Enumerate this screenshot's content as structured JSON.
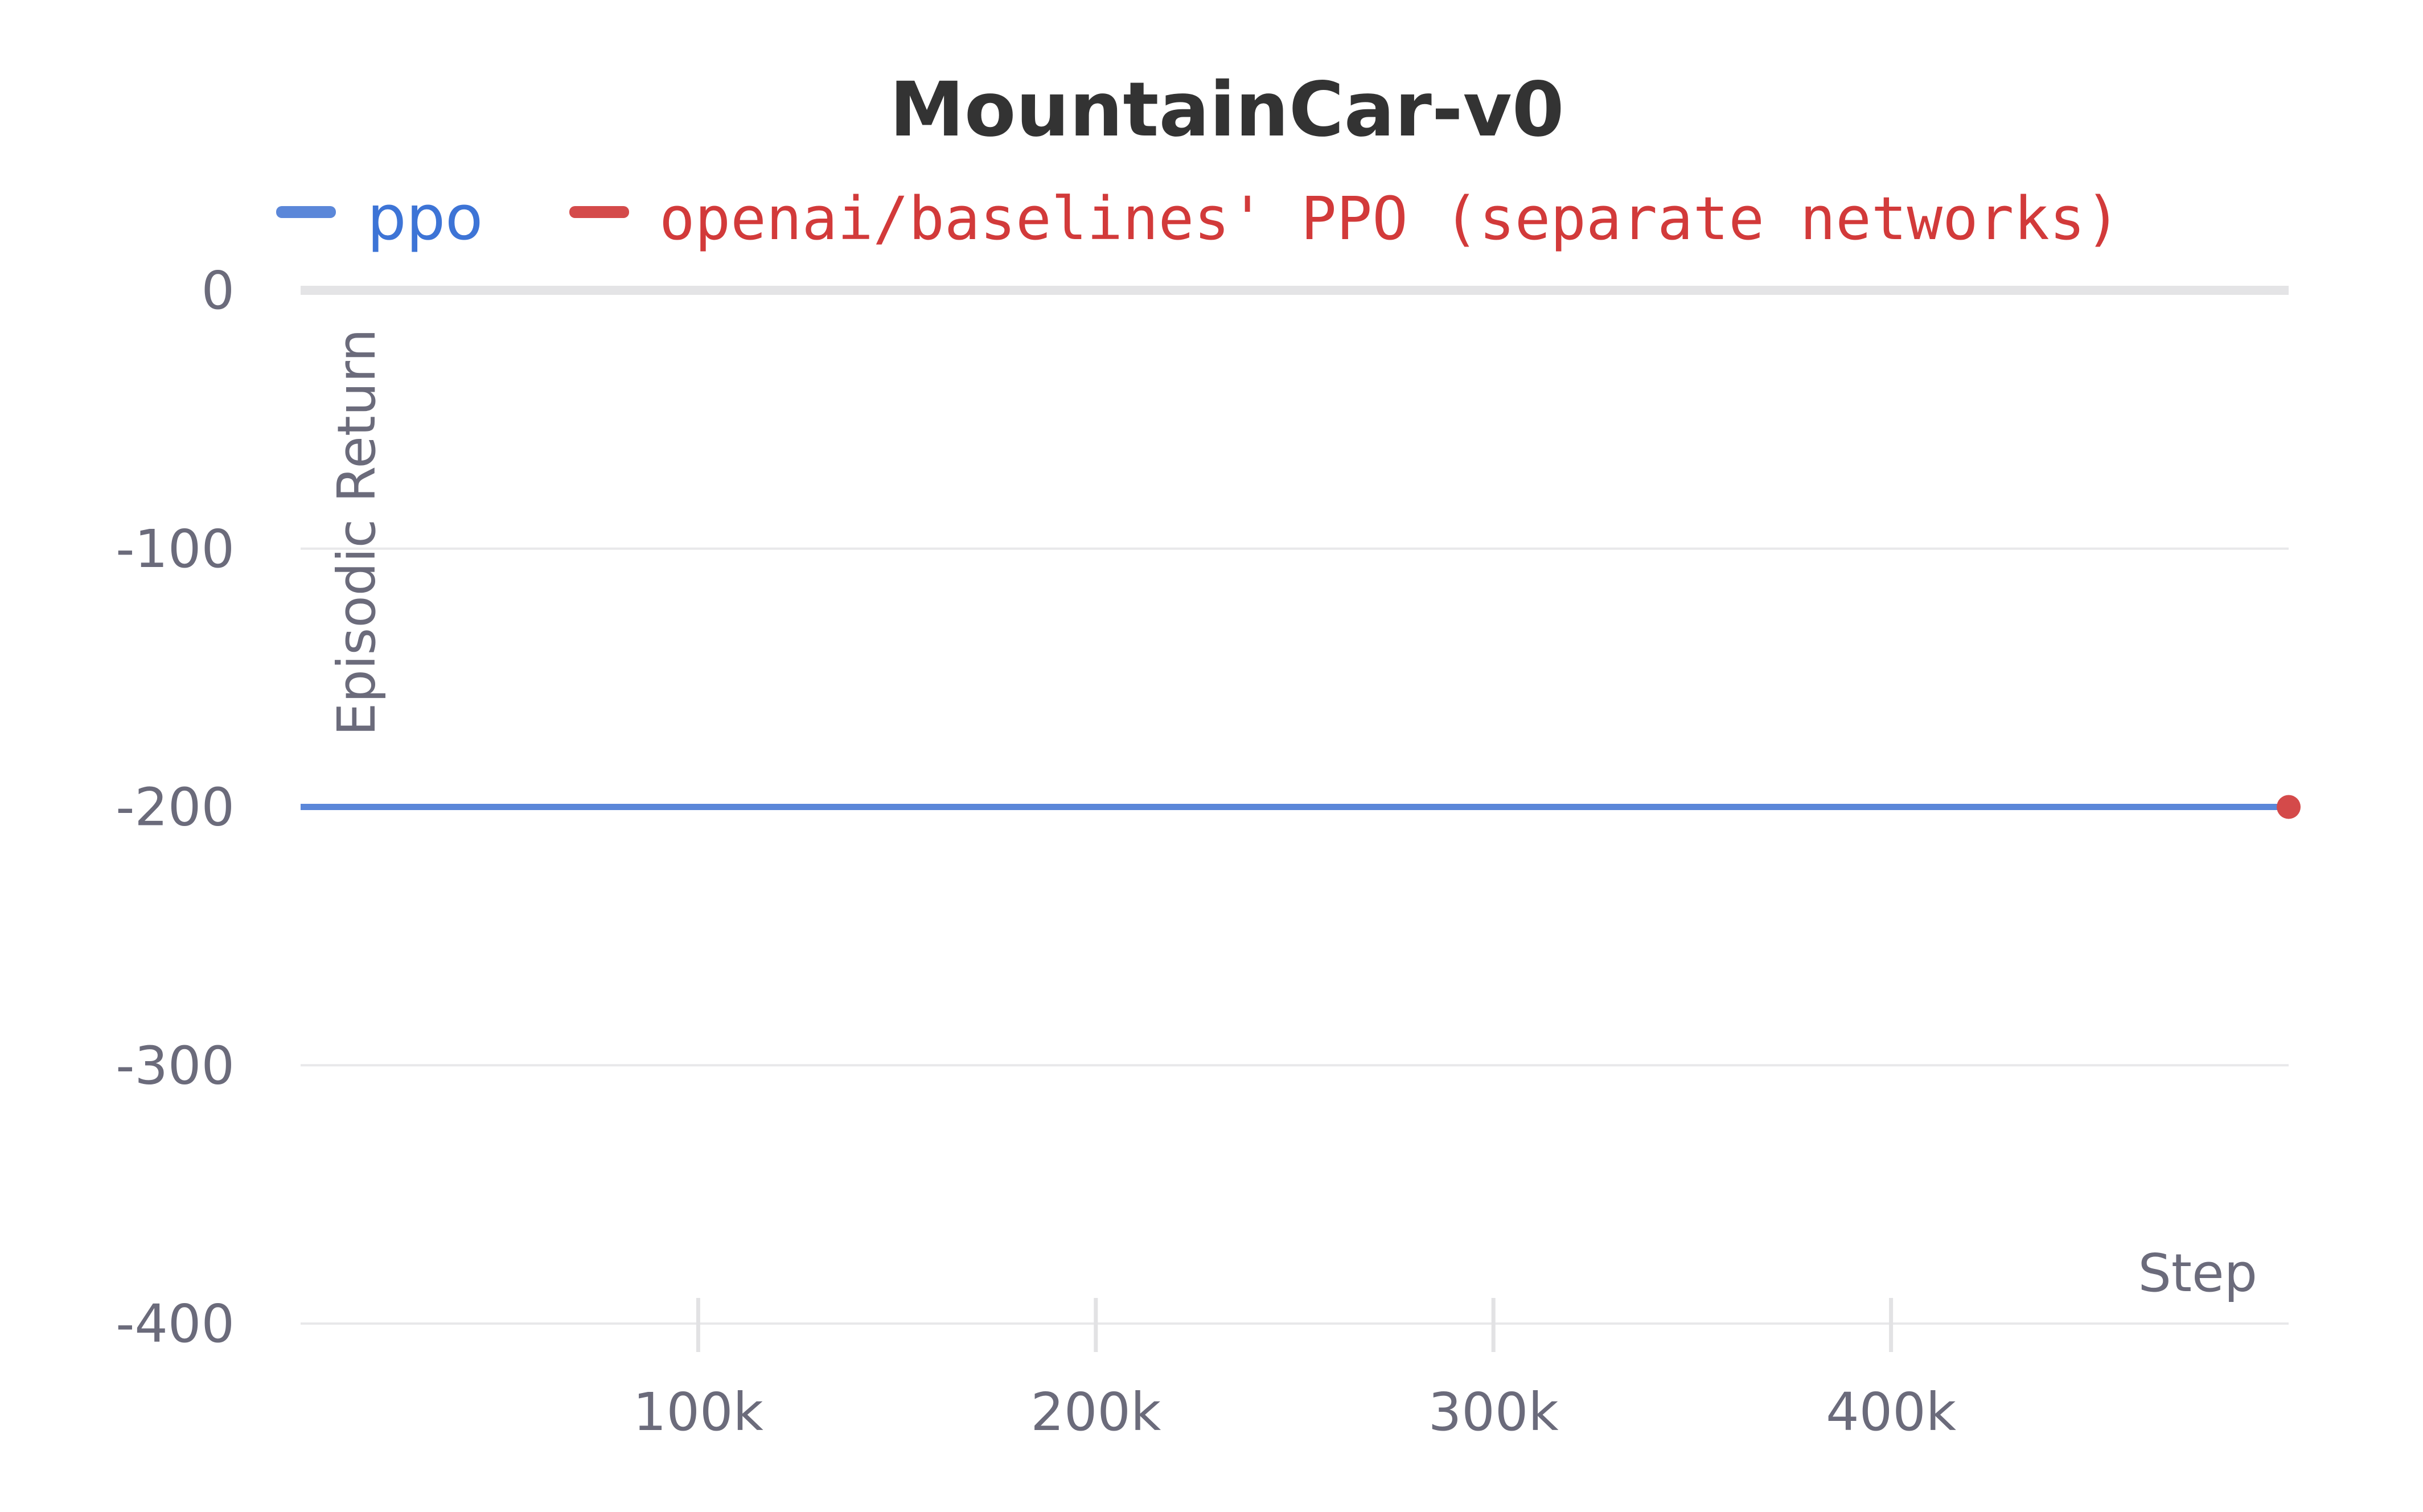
{
  "chart_data": {
    "type": "line",
    "title": "MountainCar-v0",
    "xlabel": "Step",
    "ylabel": "Episodic Return",
    "xlim": [
      0,
      500000
    ],
    "ylim": [
      -400,
      0
    ],
    "x_ticks": [
      100000,
      200000,
      300000,
      400000
    ],
    "x_tick_labels": [
      "100k",
      "200k",
      "300k",
      "400k"
    ],
    "y_ticks": [
      0,
      -100,
      -200,
      -300,
      -400
    ],
    "y_tick_labels": [
      "0",
      "-100",
      "-200",
      "-300",
      "-400"
    ],
    "grid": true,
    "legend_position": "top",
    "series": [
      {
        "name": "ppo",
        "color": "#5b87d9",
        "text_color": "#3d74d6",
        "x": [
          0,
          100000,
          200000,
          300000,
          400000,
          500000
        ],
        "y": [
          -200,
          -200,
          -200,
          -200,
          -200,
          -200
        ]
      },
      {
        "name": "openai/baselines' PPO (separate networks)",
        "color": "#d44a4a",
        "text_color": "#d23a3a",
        "x": [
          500000
        ],
        "y": [
          -200
        ]
      }
    ]
  }
}
